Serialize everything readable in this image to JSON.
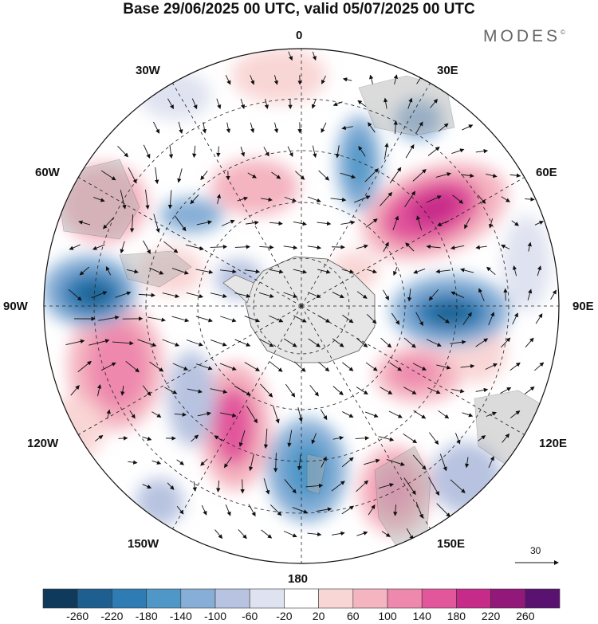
{
  "title": "Base 29/06/2025 00 UTC, valid 05/07/2025 00 UTC",
  "brand": {
    "name": "MODES",
    "mark": "©"
  },
  "map": {
    "projection": "polar-stereographic-south",
    "meridian_labels": {
      "top": "0",
      "bottom": "180",
      "left": "90W",
      "right": "90E",
      "ul1": "30W",
      "ul2": "60W",
      "ur1": "30E",
      "ur2": "60E",
      "ll1": "120W",
      "ll2": "150W",
      "lr1": "120E",
      "lr2": "150E"
    },
    "vector_reference": "30"
  },
  "colorbar": {
    "ticks": [
      "-260",
      "-220",
      "-180",
      "-140",
      "-100",
      "-60",
      "-20",
      "20",
      "60",
      "100",
      "140",
      "180",
      "220",
      "260"
    ],
    "colors": [
      "#103a5c",
      "#1f5f8f",
      "#2f7bb4",
      "#4e97c7",
      "#86aed6",
      "#b7c3e0",
      "#dfe2f0",
      "#ffffff",
      "#f9d6d6",
      "#f4b4c0",
      "#ee88ad",
      "#e2579c",
      "#c72b8a",
      "#92187a",
      "#5a1270"
    ]
  }
}
